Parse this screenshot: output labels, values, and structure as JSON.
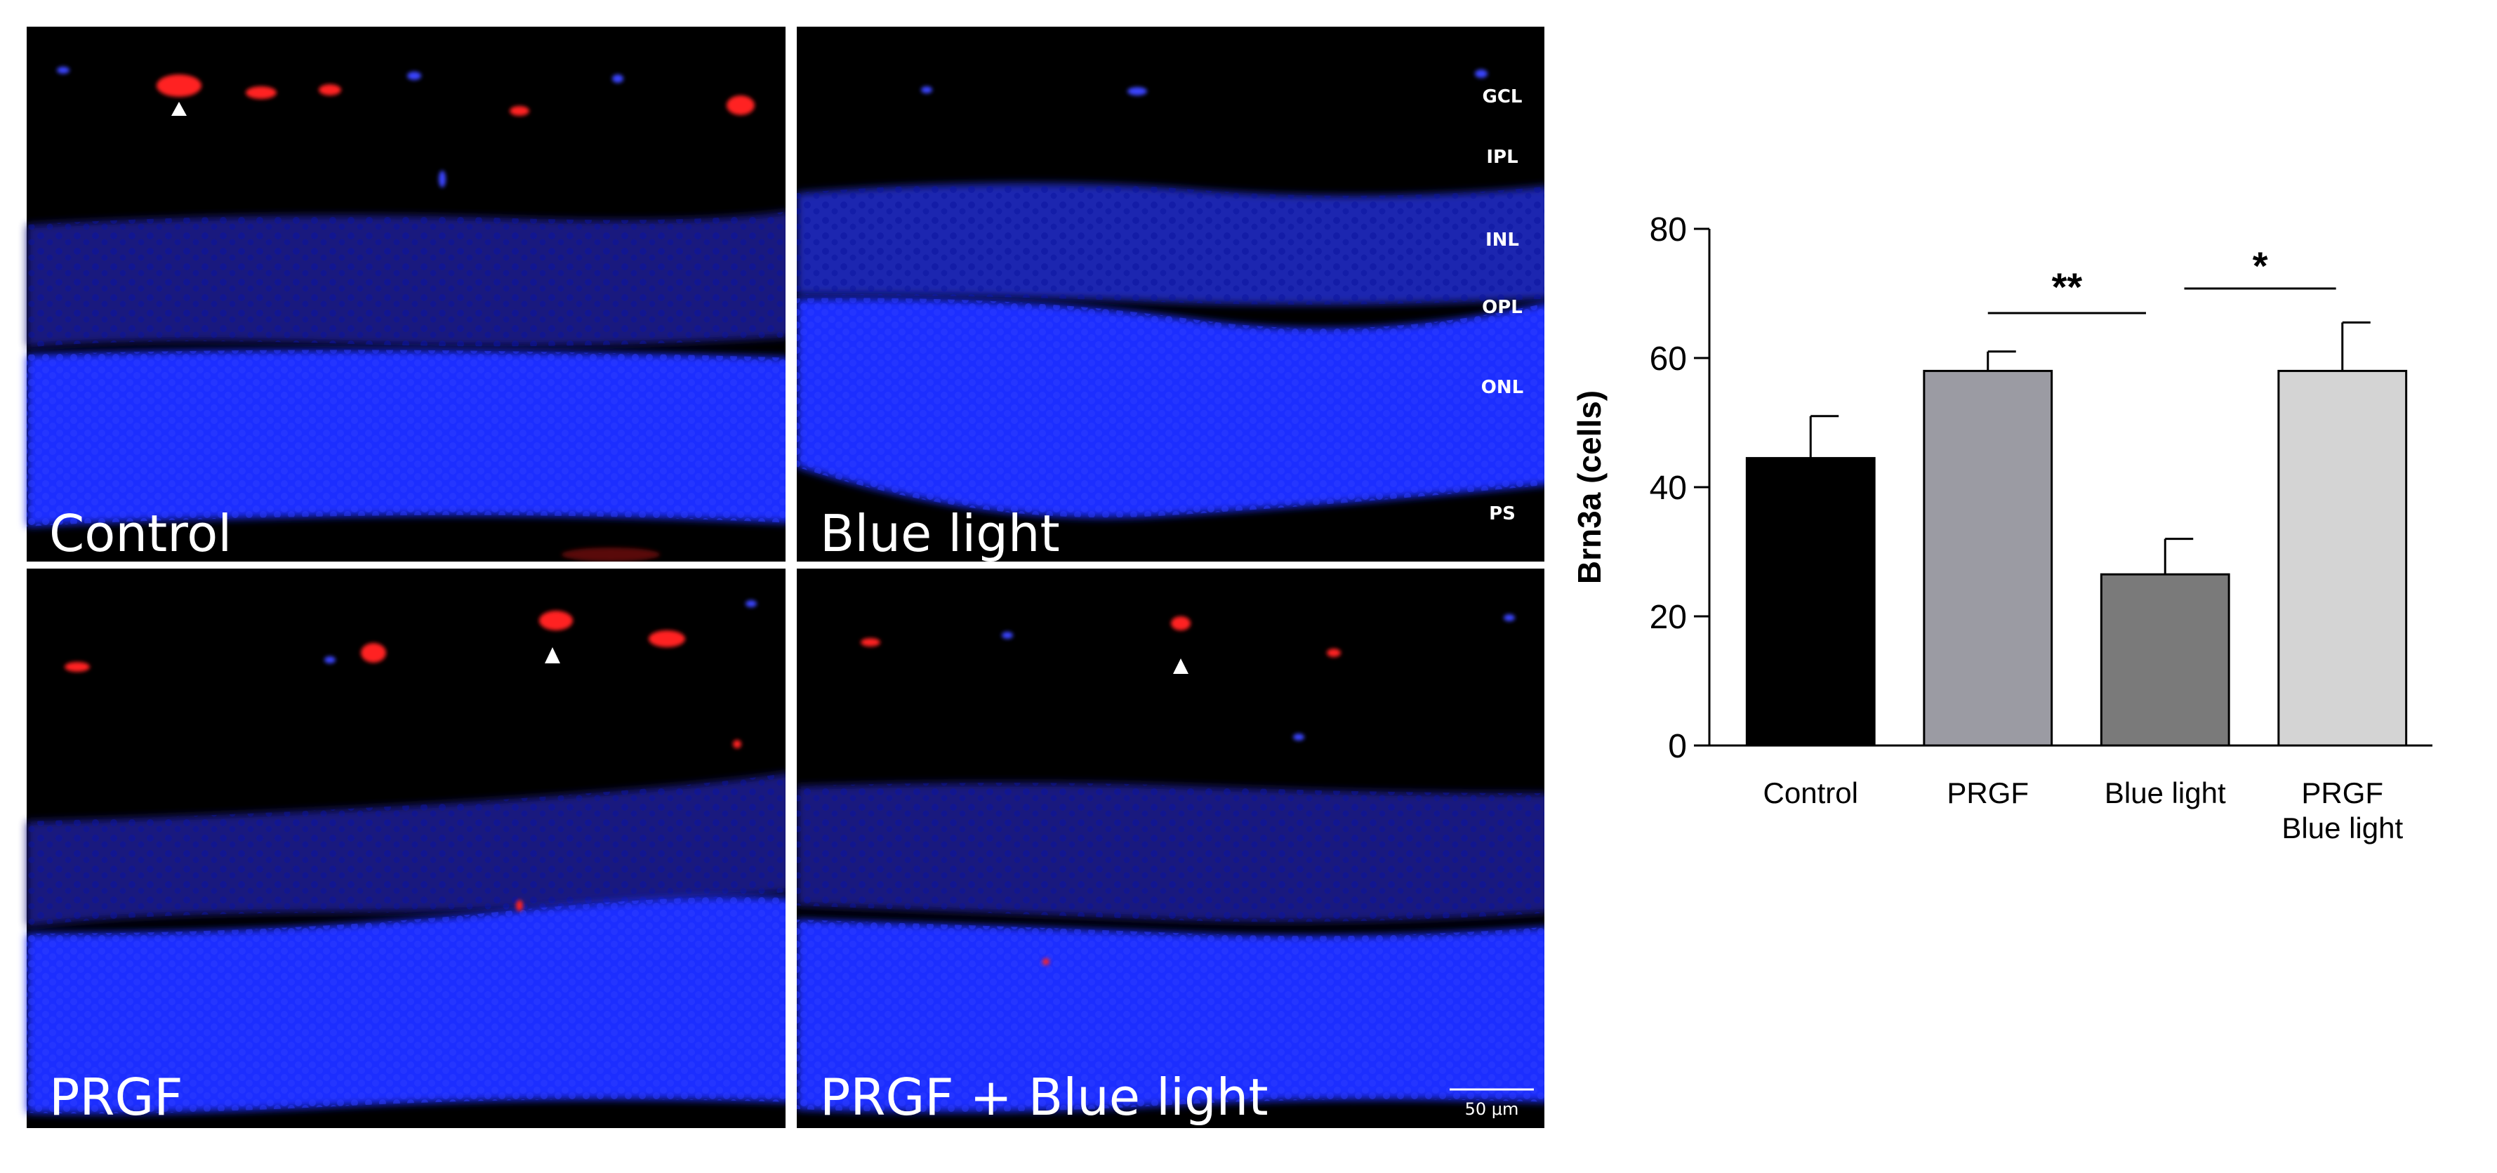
{
  "panels": [
    {
      "label": "Control"
    },
    {
      "label": "Blue light"
    },
    {
      "label": "PRGF"
    },
    {
      "label": "PRGF + Blue light"
    }
  ],
  "layers": [
    "GCL",
    "IPL",
    "INL",
    "OPL",
    "ONL",
    "PS"
  ],
  "scale_bar": "50 μm",
  "colors": {
    "nuclei": "#1a2eff",
    "marker": "#ff1a1a",
    "background": "#000000"
  },
  "chart_data": {
    "type": "bar",
    "categories": [
      "Control",
      "PRGF",
      "Blue light",
      "PRGF\nBlue light"
    ],
    "values": [
      44.5,
      58,
      26.5,
      58
    ],
    "errors": [
      6.5,
      3,
      5.5,
      7.5
    ],
    "colors": [
      "#000000",
      "#9b9ba3",
      "#7a7a7a",
      "#d4d4d4"
    ],
    "ylabel": "Brn3a (cells)",
    "ylim": [
      0,
      80
    ],
    "yticks": [
      0,
      20,
      40,
      60,
      80
    ],
    "significance": [
      {
        "from": 1,
        "to": 2,
        "label": "**"
      },
      {
        "from": 2,
        "to": 3,
        "label": "*"
      }
    ]
  }
}
